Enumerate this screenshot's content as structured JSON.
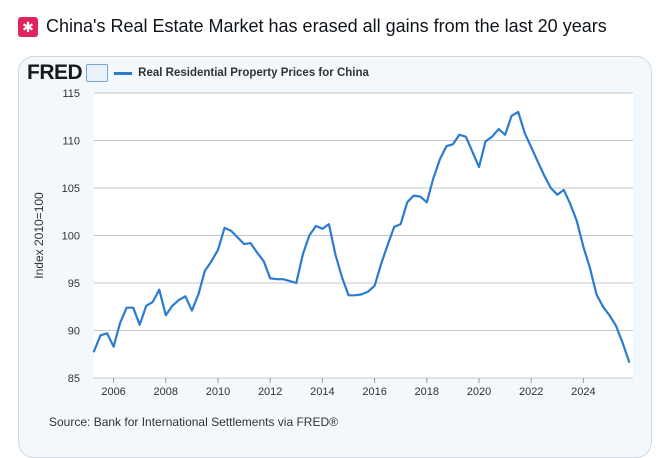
{
  "headline": {
    "emoji": "🚨",
    "text": "China's Real Estate Market has erased all gains from the last 20 years"
  },
  "fred": {
    "logo": "FRED",
    "legend": "Real Residential Property Prices for China",
    "source": "Source: Bank for International Settlements via FRED®"
  },
  "colors": {
    "line": "#2b7bd0",
    "grid": "#c7c7c7",
    "plot_bg": "#ffffff"
  },
  "chart_data": {
    "type": "line",
    "title": "",
    "xlabel": "",
    "ylabel": "Index 2010=100",
    "xlim": [
      2005.25,
      2025.9
    ],
    "ylim": [
      85,
      115
    ],
    "yticks": [
      85,
      90,
      95,
      100,
      105,
      110,
      115
    ],
    "xticks": [
      2006,
      2008,
      2010,
      2012,
      2014,
      2016,
      2018,
      2020,
      2022,
      2024
    ],
    "grid": "horizontal",
    "series": [
      {
        "name": "Real Residential Property Prices for China",
        "x": [
          2005.25,
          2005.5,
          2005.75,
          2006.0,
          2006.25,
          2006.5,
          2006.75,
          2007.0,
          2007.25,
          2007.5,
          2007.75,
          2008.0,
          2008.25,
          2008.5,
          2008.75,
          2009.0,
          2009.25,
          2009.5,
          2009.75,
          2010.0,
          2010.25,
          2010.5,
          2010.75,
          2011.0,
          2011.25,
          2011.5,
          2011.75,
          2012.0,
          2012.25,
          2012.5,
          2012.75,
          2013.0,
          2013.25,
          2013.5,
          2013.75,
          2014.0,
          2014.25,
          2014.5,
          2014.75,
          2015.0,
          2015.25,
          2015.5,
          2015.75,
          2016.0,
          2016.25,
          2016.5,
          2016.75,
          2017.0,
          2017.25,
          2017.5,
          2017.75,
          2018.0,
          2018.25,
          2018.5,
          2018.75,
          2019.0,
          2019.25,
          2019.5,
          2019.75,
          2020.0,
          2020.25,
          2020.5,
          2020.75,
          2021.0,
          2021.25,
          2021.5,
          2021.75,
          2022.0,
          2022.25,
          2022.5,
          2022.75,
          2023.0,
          2023.25,
          2023.5,
          2023.75,
          2024.0,
          2024.25,
          2024.5,
          2024.75,
          2025.0,
          2025.25,
          2025.5,
          2025.75
        ],
        "values": [
          87.8,
          89.5,
          89.7,
          88.3,
          90.8,
          92.4,
          92.4,
          90.6,
          92.6,
          93.0,
          94.3,
          91.6,
          92.6,
          93.2,
          93.6,
          92.1,
          93.8,
          96.3,
          97.3,
          98.5,
          100.8,
          100.5,
          99.8,
          99.1,
          99.2,
          98.2,
          97.3,
          95.5,
          95.4,
          95.4,
          95.2,
          95.0,
          98.0,
          100.0,
          101.0,
          100.7,
          101.2,
          98.0,
          95.6,
          93.7,
          93.7,
          93.8,
          94.1,
          94.7,
          97.0,
          99.0,
          100.9,
          101.2,
          103.5,
          104.2,
          104.1,
          103.5,
          106.0,
          108.0,
          109.4,
          109.6,
          110.6,
          110.4,
          108.8,
          107.2,
          109.9,
          110.4,
          111.2,
          110.6,
          112.6,
          113.0,
          110.8,
          109.3,
          107.8,
          106.3,
          105.0,
          104.3,
          104.8,
          103.3,
          101.5,
          98.8,
          96.6,
          93.8,
          92.5,
          91.6,
          90.5,
          88.7,
          86.7
        ]
      }
    ]
  }
}
